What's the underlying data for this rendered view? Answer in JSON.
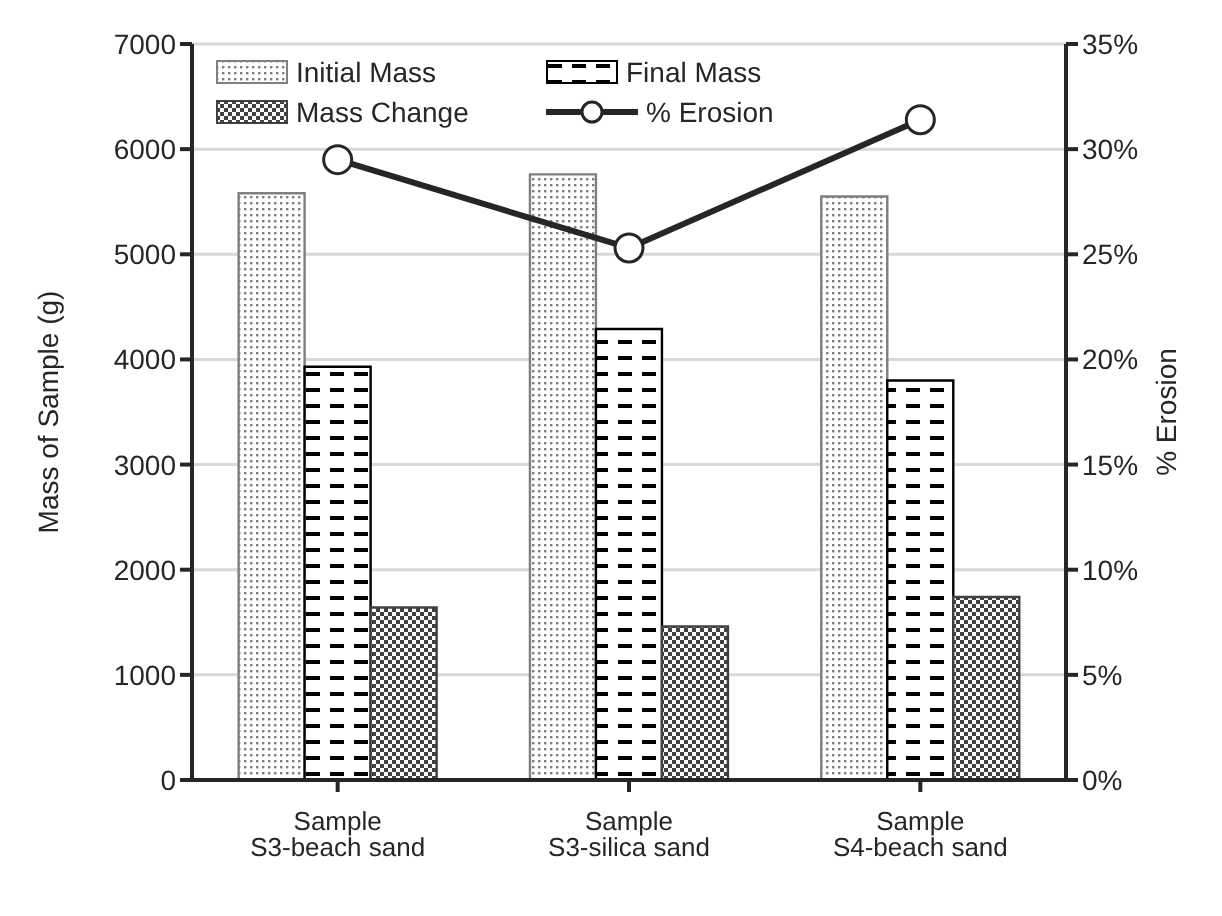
{
  "chart_data": {
    "type": "bar",
    "categories": [
      "Sample S3-beach sand",
      "Sample S3-silica sand",
      "Sample S4-beach sand"
    ],
    "ylabel": "Mass of Sample (g)",
    "y2label": "% Erosion",
    "series": [
      {
        "name": "Initial Mass",
        "color": "#7f7f7f",
        "values": [
          5580,
          5760,
          5550
        ]
      },
      {
        "name": "Final Mass",
        "color": "#000000",
        "values": [
          3930,
          4290,
          3800
        ]
      },
      {
        "name": "Mass Change",
        "color": "#404040",
        "values": [
          1640,
          1460,
          1740
        ]
      },
      {
        "name": "% Erosion",
        "type": "line",
        "axis": "y2",
        "color": "#262626",
        "marker": "circle",
        "values": [
          29.5,
          25.3,
          31.4
        ]
      }
    ],
    "ylim": [
      0,
      7000
    ],
    "yticks": [
      0,
      1000,
      2000,
      3000,
      4000,
      5000,
      6000,
      7000
    ],
    "y2lim": [
      0,
      35
    ],
    "y2ticks": [
      {
        "value": 0,
        "label": "0%"
      },
      {
        "value": 5,
        "label": "5%"
      },
      {
        "value": 10,
        "label": "10%"
      },
      {
        "value": 15,
        "label": "15%"
      },
      {
        "value": 20,
        "label": "20%"
      },
      {
        "value": 25,
        "label": "25%"
      },
      {
        "value": 30,
        "label": "30%"
      },
      {
        "value": 35,
        "label": "35%"
      }
    ],
    "grid": "y",
    "legend": "top"
  }
}
